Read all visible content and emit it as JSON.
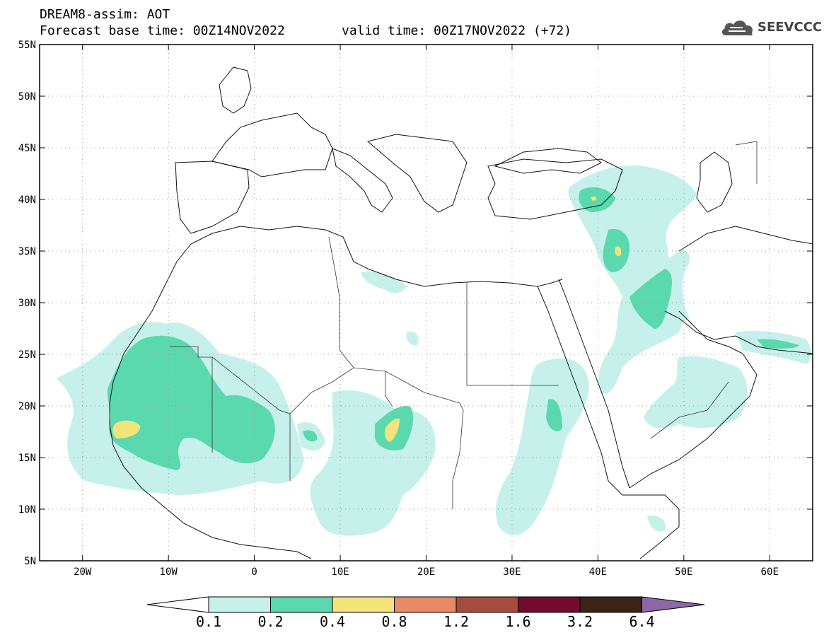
{
  "header": {
    "title_line1": "DREAM8-assim: AOT",
    "base_time": "Forecast base time: 00Z14NOV2022",
    "valid_time": "valid time: 00Z17NOV2022 (+72)"
  },
  "logo": {
    "text": "SEEVCCC",
    "icon": "cloud-icon"
  },
  "map": {
    "x_ticks": [
      {
        "value": -20,
        "label": "20W"
      },
      {
        "value": -10,
        "label": "10W"
      },
      {
        "value": 0,
        "label": "0"
      },
      {
        "value": 10,
        "label": "10E"
      },
      {
        "value": 20,
        "label": "20E"
      },
      {
        "value": 30,
        "label": "30E"
      },
      {
        "value": 40,
        "label": "40E"
      },
      {
        "value": 50,
        "label": "50E"
      },
      {
        "value": 60,
        "label": "60E"
      }
    ],
    "y_ticks": [
      {
        "value": 55,
        "label": "55N"
      },
      {
        "value": 50,
        "label": "50N"
      },
      {
        "value": 45,
        "label": "45N"
      },
      {
        "value": 40,
        "label": "40N"
      },
      {
        "value": 35,
        "label": "35N"
      },
      {
        "value": 30,
        "label": "30N"
      },
      {
        "value": 25,
        "label": "25N"
      },
      {
        "value": 20,
        "label": "20N"
      },
      {
        "value": 15,
        "label": "15N"
      },
      {
        "value": 10,
        "label": "10N"
      },
      {
        "value": 5,
        "label": "5N"
      }
    ],
    "lon_range": [
      -25,
      65
    ],
    "lat_range": [
      5,
      55
    ],
    "grid": true
  },
  "colorbar": {
    "labels": [
      "0.1",
      "0.2",
      "0.4",
      "0.8",
      "1.2",
      "1.6",
      "3.2",
      "6.4"
    ],
    "colors": [
      "#c6f0ea",
      "#5ad9ae",
      "#f3e37a",
      "#e98a66",
      "#a84b3f",
      "#730b2c",
      "#3b2415",
      "#8c68a8"
    ],
    "under_color": "#ffffff"
  },
  "legend_colors": {
    "low": "#c6f0ea",
    "mid": "#5ad9ae",
    "high": "#f3e37a"
  }
}
